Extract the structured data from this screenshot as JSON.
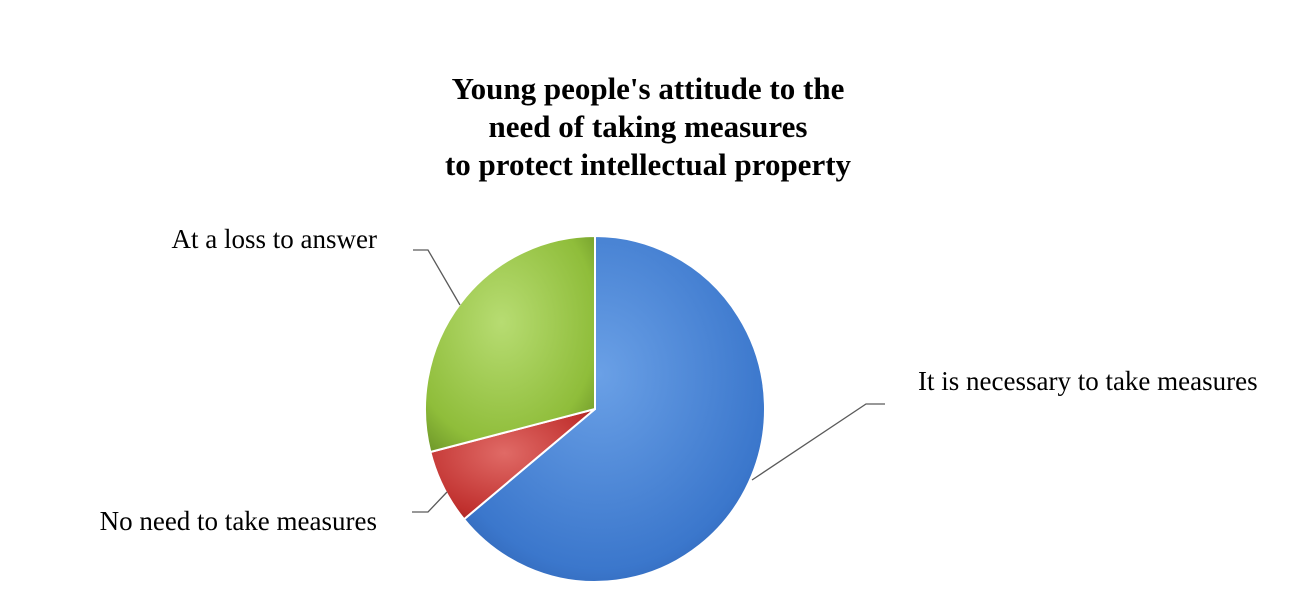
{
  "chart_data": {
    "type": "pie",
    "title": [
      "Young people's attitude to the",
      "need of taking measures",
      "to protect intellectual property"
    ],
    "slices": [
      {
        "label": "It is necessary to take measures",
        "value": 64,
        "color": "#3b77cc"
      },
      {
        "label": "No need to take measures",
        "value": 7,
        "color": "#c0302e"
      },
      {
        "label": "At a loss to answer",
        "value": 29,
        "color": "#8fbd3a"
      }
    ],
    "start_angle_deg": 0,
    "direction": "clockwise",
    "legend": "none",
    "data_labels": "category names with leader lines"
  }
}
